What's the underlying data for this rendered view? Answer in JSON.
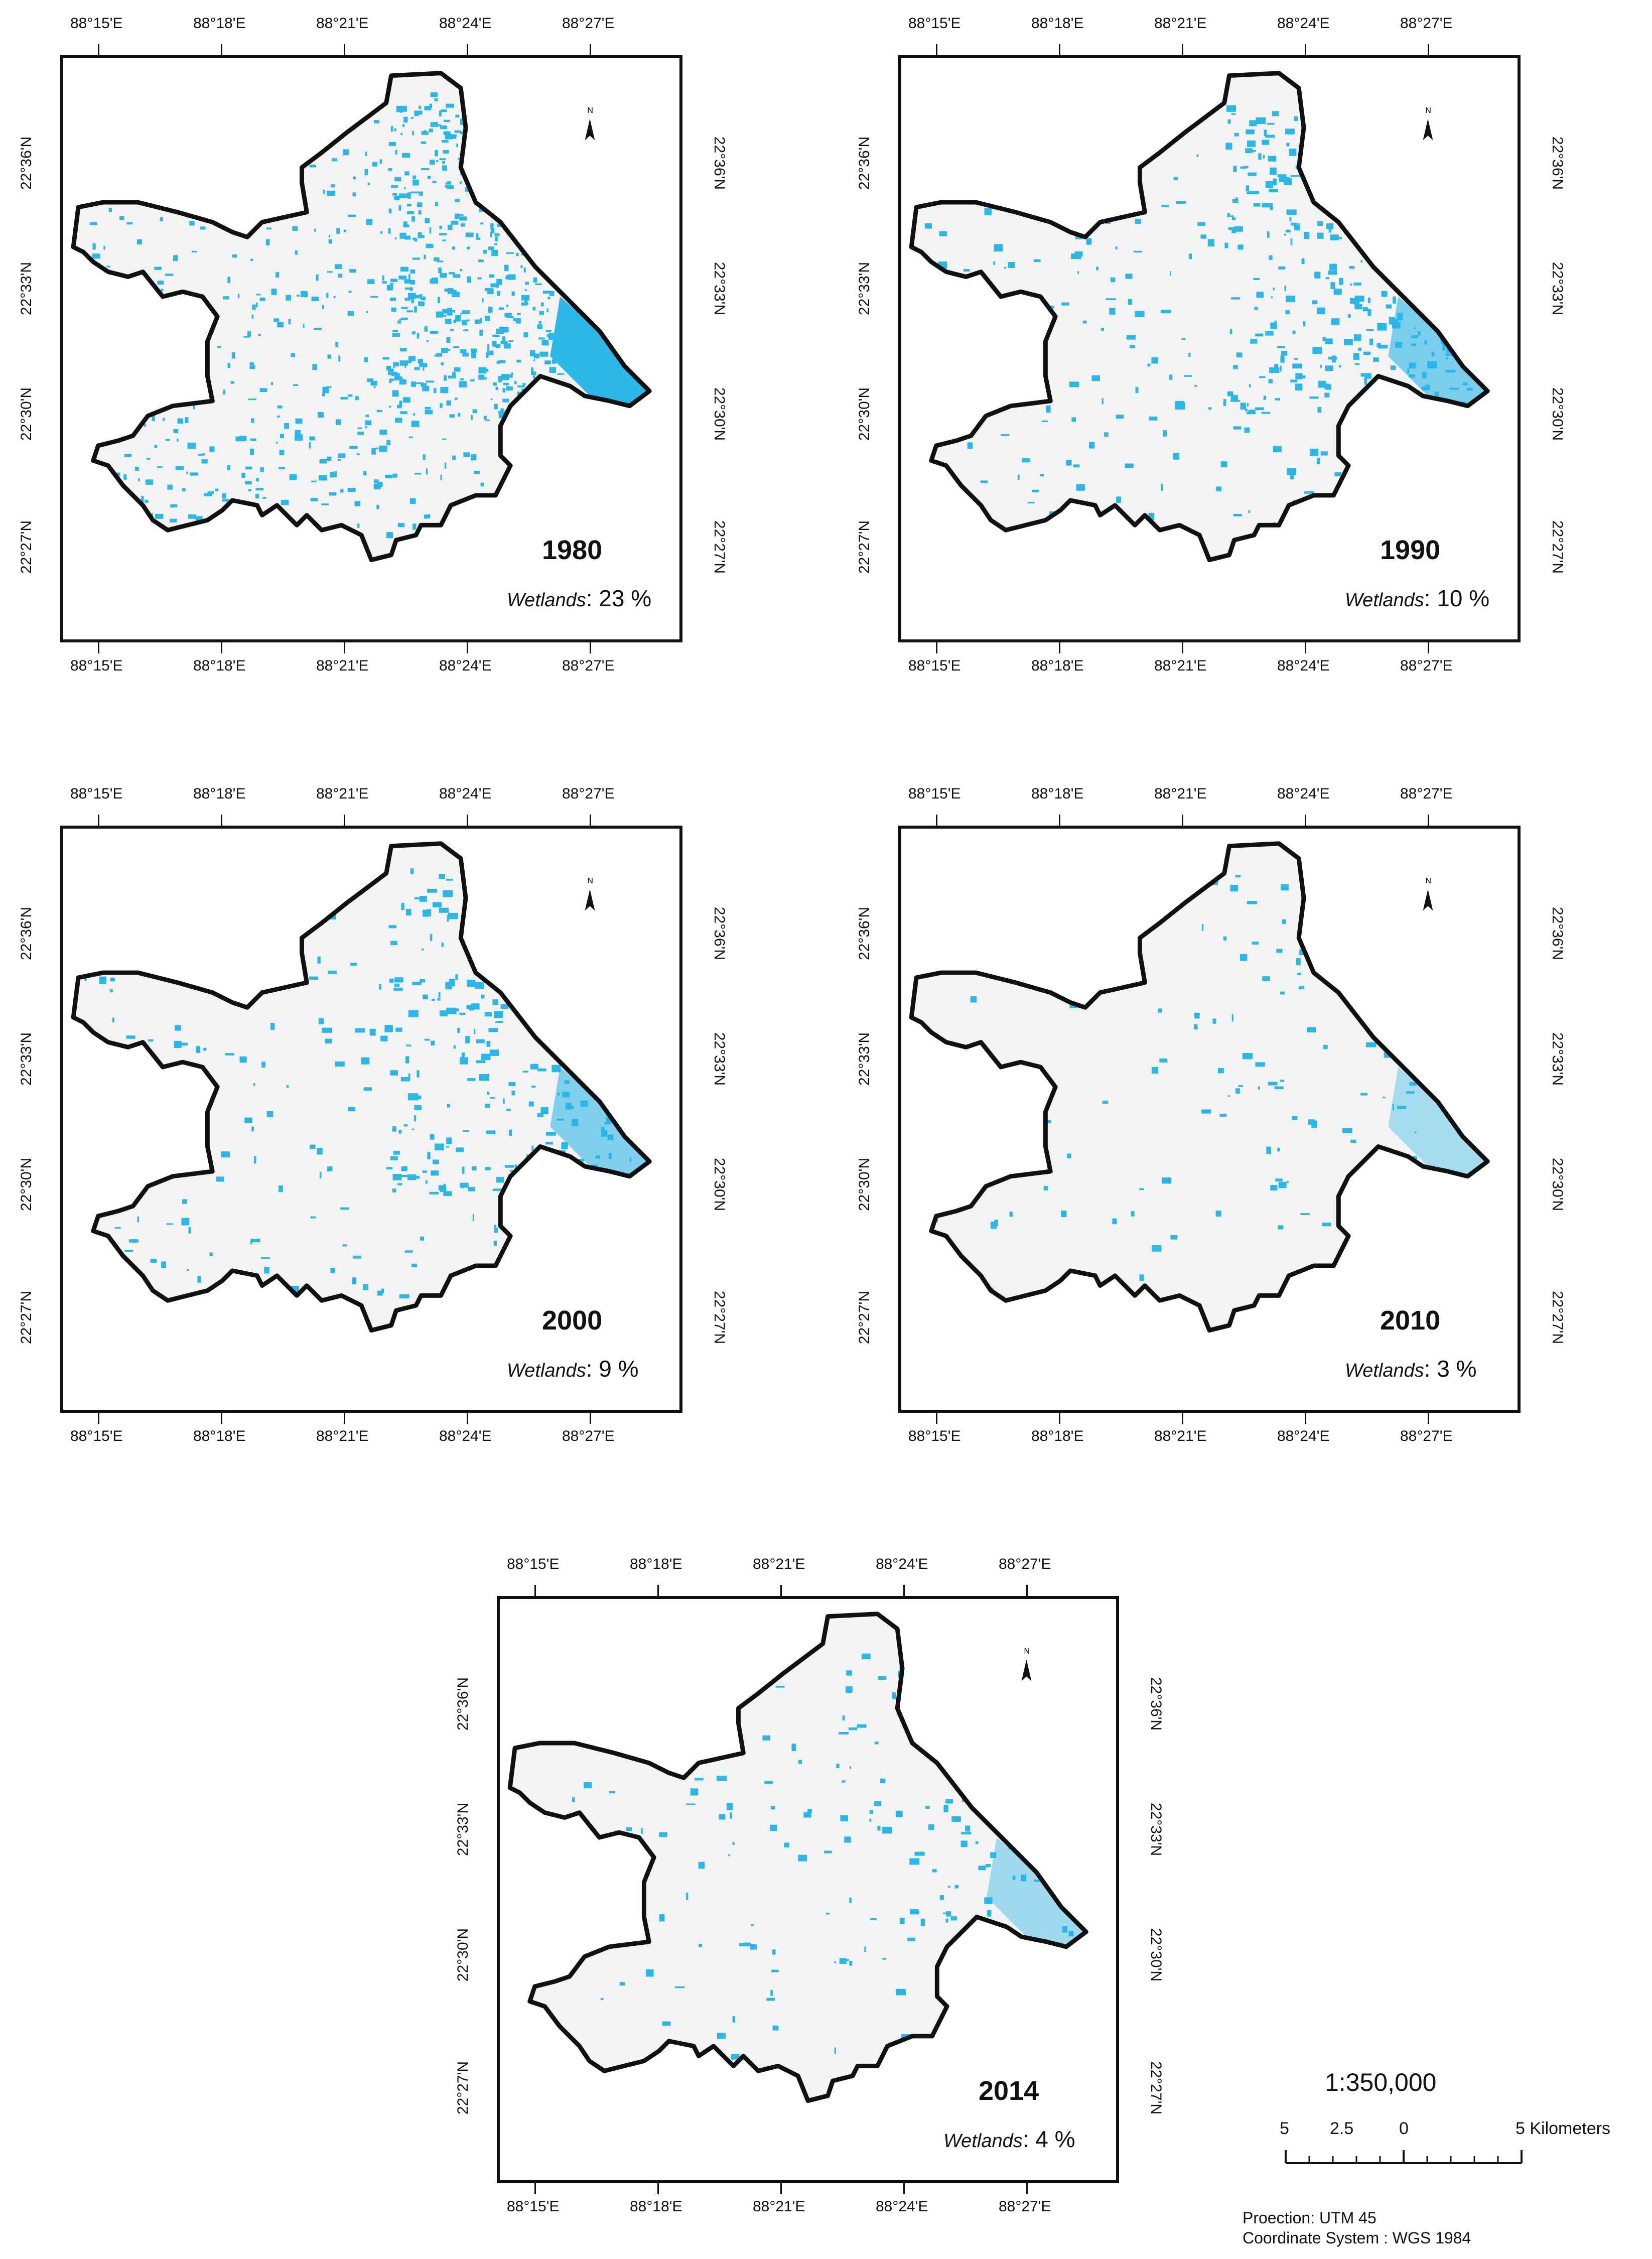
{
  "colors": {
    "wetland": "#29b6e8",
    "boundary": "#111111",
    "urban": "#d9d9d9"
  },
  "axes": {
    "lon_labels": [
      "88°15'E",
      "88°18'E",
      "88°21'E",
      "88°24'E",
      "88°27'E"
    ],
    "lat_labels": [
      "22°36'N",
      "22°33'N",
      "22°30'N",
      "22°27'N"
    ]
  },
  "north_arrow": {
    "icon": "north-arrow-icon",
    "label": "N"
  },
  "panels": [
    {
      "year": "1980",
      "wetlands_label": "Wetlands",
      "wetlands_value": ": 23 %",
      "wetland_share": 0.23
    },
    {
      "year": "1990",
      "wetlands_label": "Wetlands",
      "wetlands_value": ": 10 %",
      "wetland_share": 0.1
    },
    {
      "year": "2000",
      "wetlands_label": "Wetlands",
      "wetlands_value": ": 9 %",
      "wetland_share": 0.09
    },
    {
      "year": "2010",
      "wetlands_label": "Wetlands",
      "wetlands_value": ": 3 %",
      "wetland_share": 0.03
    },
    {
      "year": "2014",
      "wetlands_label": "Wetlands",
      "wetlands_value": ": 4 %",
      "wetland_share": 0.04
    }
  ],
  "scale_bar": {
    "ratio": "1:350,000",
    "labels": [
      "5",
      "2.5",
      "0",
      "5 Kilometers"
    ]
  },
  "notes": {
    "projection": "Proection: UTM 45",
    "coordinate_system": "Coordinate System : WGS 1984"
  }
}
